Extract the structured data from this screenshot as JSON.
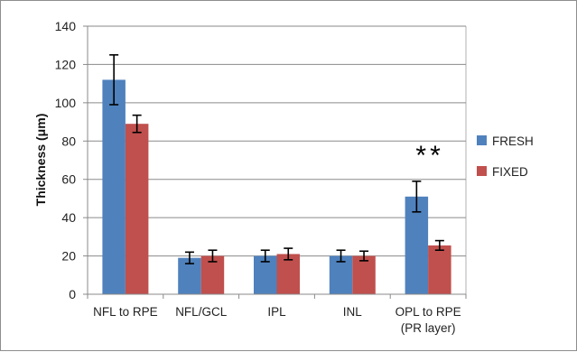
{
  "chart_data": {
    "type": "bar",
    "title": "",
    "xlabel": "",
    "ylabel": "Thickness (μm)",
    "ylim": [
      0,
      140
    ],
    "yticks": [
      0,
      20,
      40,
      60,
      80,
      100,
      120,
      140
    ],
    "grid": true,
    "legend_position": "right",
    "categories": [
      [
        "NFL to RPE"
      ],
      [
        "NFL/GCL"
      ],
      [
        "IPL"
      ],
      [
        "INL"
      ],
      [
        "OPL to RPE",
        "(PR layer)"
      ]
    ],
    "series": [
      {
        "name": "FRESH",
        "color": "#4f81bd",
        "values": [
          112,
          19,
          20,
          20,
          51
        ],
        "errors": [
          13,
          3,
          3,
          3,
          8
        ]
      },
      {
        "name": "FIXED",
        "color": "#c0504d",
        "values": [
          89,
          20,
          21,
          20,
          25.5
        ],
        "errors": [
          4.5,
          3,
          3,
          2.5,
          2.5
        ]
      }
    ],
    "annotations": [
      {
        "text": "**",
        "category_index": 4
      }
    ]
  }
}
